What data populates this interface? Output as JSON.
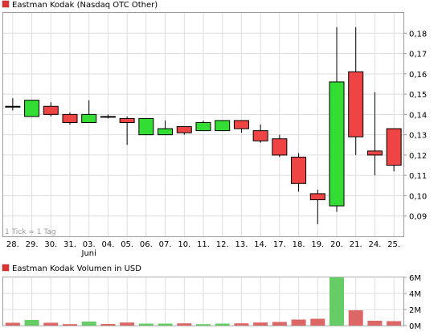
{
  "colors": {
    "up": "#33dd33",
    "down": "#ee4444",
    "volume_up": "#66cc66",
    "volume_down": "#dd6666",
    "grid": "#dddddd",
    "frame": "#999999",
    "legend_box": "#dd3333"
  },
  "chart_data": [
    {
      "type": "candlestick",
      "title": "Eastman Kodak (Nasdaq OTC Other)",
      "annotation": "1 Tick = 1 Tag",
      "ylim": [
        0.08,
        0.19
      ],
      "yticks": [
        0.09,
        0.1,
        0.11,
        0.12,
        0.13,
        0.14,
        0.15,
        0.16,
        0.17,
        0.18
      ],
      "ytick_labels": [
        "0,09",
        "0,10",
        "0,11",
        "0,12",
        "0,13",
        "0,14",
        "0,15",
        "0,16",
        "0,17",
        "0,18"
      ],
      "categories": [
        "28.",
        "29.",
        "30.",
        "31.",
        "03.",
        "04.",
        "05.",
        "06.",
        "07.",
        "10.",
        "11.",
        "12.",
        "13.",
        "14.",
        "17.",
        "18.",
        "19.",
        "20.",
        "21.",
        "24.",
        "25."
      ],
      "month_label": "Juni",
      "month_label_index": 4,
      "grid": true,
      "candles": [
        {
          "open": 0.144,
          "high": 0.148,
          "low": 0.142,
          "close": 0.144
        },
        {
          "open": 0.139,
          "high": 0.147,
          "low": 0.139,
          "close": 0.147
        },
        {
          "open": 0.144,
          "high": 0.146,
          "low": 0.139,
          "close": 0.14
        },
        {
          "open": 0.14,
          "high": 0.141,
          "low": 0.135,
          "close": 0.136
        },
        {
          "open": 0.136,
          "high": 0.147,
          "low": 0.136,
          "close": 0.14
        },
        {
          "open": 0.139,
          "high": 0.14,
          "low": 0.138,
          "close": 0.139
        },
        {
          "open": 0.138,
          "high": 0.139,
          "low": 0.125,
          "close": 0.136
        },
        {
          "open": 0.13,
          "high": 0.138,
          "low": 0.13,
          "close": 0.138
        },
        {
          "open": 0.13,
          "high": 0.137,
          "low": 0.13,
          "close": 0.133
        },
        {
          "open": 0.134,
          "high": 0.134,
          "low": 0.13,
          "close": 0.131
        },
        {
          "open": 0.132,
          "high": 0.137,
          "low": 0.132,
          "close": 0.136
        },
        {
          "open": 0.132,
          "high": 0.137,
          "low": 0.132,
          "close": 0.137
        },
        {
          "open": 0.137,
          "high": 0.137,
          "low": 0.131,
          "close": 0.133
        },
        {
          "open": 0.132,
          "high": 0.135,
          "low": 0.126,
          "close": 0.127
        },
        {
          "open": 0.128,
          "high": 0.13,
          "low": 0.119,
          "close": 0.12
        },
        {
          "open": 0.119,
          "high": 0.121,
          "low": 0.102,
          "close": 0.106
        },
        {
          "open": 0.101,
          "high": 0.103,
          "low": 0.086,
          "close": 0.098
        },
        {
          "open": 0.095,
          "high": 0.183,
          "low": 0.092,
          "close": 0.156
        },
        {
          "open": 0.161,
          "high": 0.183,
          "low": 0.12,
          "close": 0.129
        },
        {
          "open": 0.122,
          "high": 0.151,
          "low": 0.11,
          "close": 0.12
        },
        {
          "open": 0.133,
          "high": 0.133,
          "low": 0.112,
          "close": 0.115
        }
      ]
    },
    {
      "type": "bar",
      "title": "Eastman Kodak Volumen in USD",
      "unit": "USD",
      "ylim": [
        0,
        6000000
      ],
      "yticks": [
        0,
        2000000,
        4000000,
        6000000
      ],
      "ytick_labels": [
        "0M",
        "2M",
        "4M",
        "6M"
      ],
      "categories": [
        "28.",
        "29.",
        "30.",
        "31.",
        "03.",
        "04.",
        "05.",
        "06.",
        "07.",
        "10.",
        "11.",
        "12.",
        "13.",
        "14.",
        "17.",
        "18.",
        "19.",
        "20.",
        "21.",
        "24.",
        "25."
      ],
      "values": [
        350000,
        700000,
        350000,
        180000,
        500000,
        200000,
        380000,
        250000,
        250000,
        280000,
        180000,
        250000,
        280000,
        380000,
        450000,
        750000,
        850000,
        6000000,
        1900000,
        600000,
        550000
      ],
      "directions": [
        "down",
        "up",
        "down",
        "down",
        "up",
        "down",
        "down",
        "up",
        "up",
        "down",
        "up",
        "up",
        "down",
        "down",
        "down",
        "down",
        "down",
        "up",
        "down",
        "down",
        "down"
      ]
    }
  ]
}
